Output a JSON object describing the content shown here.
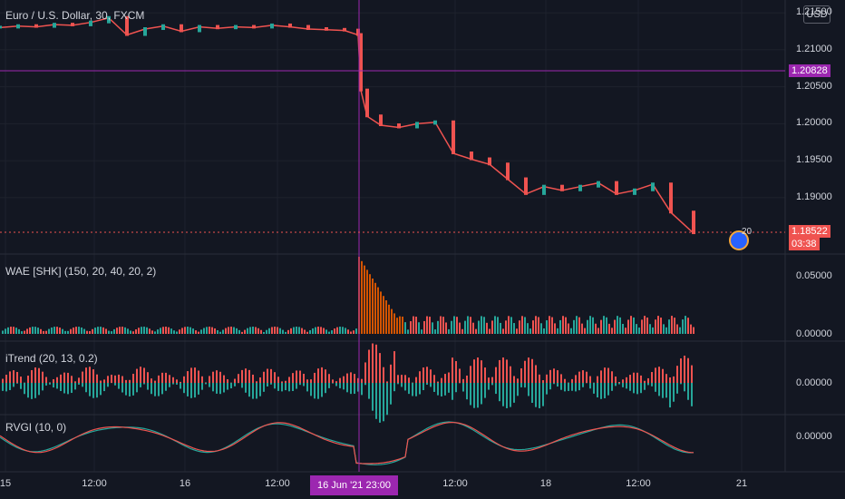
{
  "symbol_title": "Euro / U.S. Dollar, 30, FXCM",
  "currency": "USD",
  "crosshair": {
    "price": "1.20828",
    "time": "16 Jun '21   23:00"
  },
  "last": {
    "price": "1.18522",
    "countdown": "03:38"
  },
  "replay_badge": "20",
  "panes": {
    "price": {
      "ticks": [
        "1.21500",
        "1.21000",
        "1.20500",
        "1.20000",
        "1.19500",
        "1.19000"
      ]
    },
    "wae": {
      "title": "WAE [SHK] (150, 20, 40, 20, 2)",
      "ticks": [
        "0.05000",
        "0.00000"
      ]
    },
    "itrend": {
      "title": "iTrend (20, 13, 0.2)",
      "ticks": [
        "0.00000"
      ]
    },
    "rvgi": {
      "title": "RVGI (10, 0)",
      "ticks": [
        "0.00000"
      ]
    }
  },
  "x_axis": {
    "ticks": [
      "15",
      "12:00",
      "16",
      "12:00",
      "12:00",
      "18",
      "12:00",
      "21"
    ]
  },
  "colors": {
    "up": "#26a69a",
    "down": "#ef5350",
    "crosshair": "#9c27b0",
    "background": "#131722"
  },
  "chart_data": {
    "type": "line",
    "title": "Euro / U.S. Dollar, 30, FXCM",
    "x": [
      0,
      20,
      40,
      60,
      80,
      100,
      120,
      140,
      160,
      180,
      200,
      220,
      240,
      260,
      280,
      300,
      320,
      340,
      360,
      380,
      395,
      398,
      405,
      420,
      440,
      460,
      480,
      500,
      520,
      540,
      560,
      580,
      600,
      620,
      640,
      660,
      680,
      700,
      720,
      740,
      765
    ],
    "series": [
      {
        "values": [
          1.213,
          1.2132,
          1.2131,
          1.2134,
          1.2133,
          1.2137,
          1.2143,
          1.212,
          1.2128,
          1.2132,
          1.2125,
          1.2131,
          1.2129,
          1.2131,
          1.213,
          1.2133,
          1.2131,
          1.2128,
          1.2127,
          1.2126,
          1.212,
          1.2045,
          1.201,
          1.1998,
          1.1995,
          1.2,
          1.2002,
          1.196,
          1.1952,
          1.1945,
          1.1925,
          1.1905,
          1.1915,
          1.191,
          1.1915,
          1.192,
          1.1905,
          1.191,
          1.1918,
          1.188,
          1.1852
        ]
      }
    ]
  }
}
